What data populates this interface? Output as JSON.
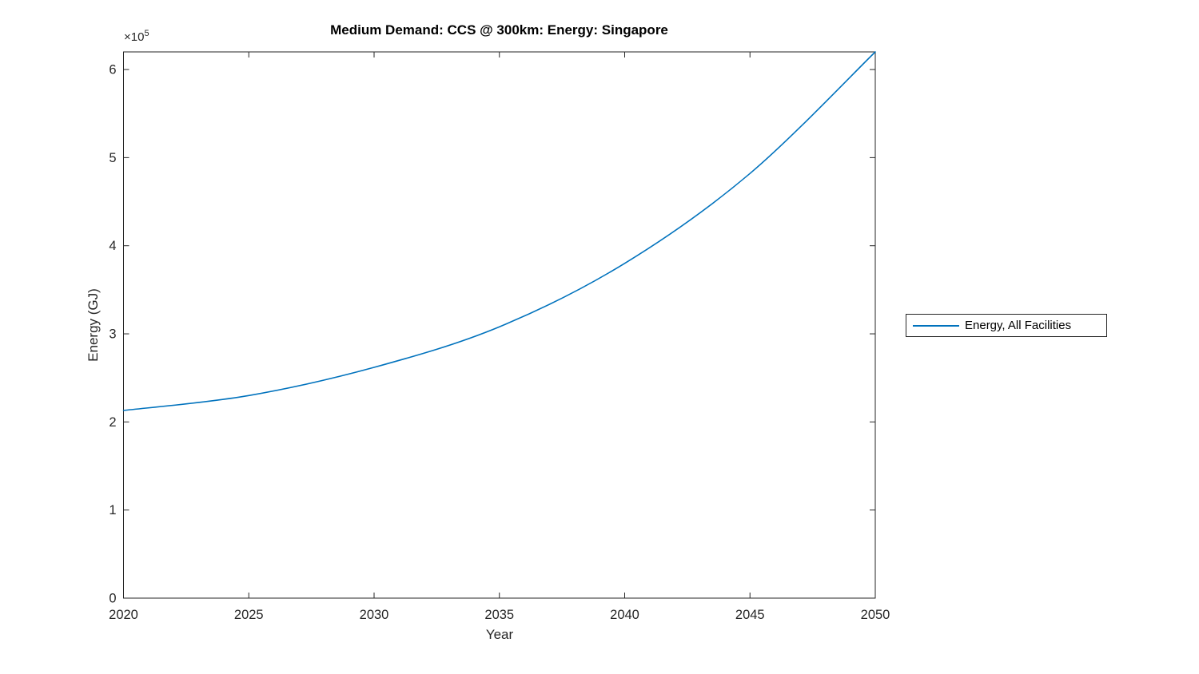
{
  "chart_data": {
    "type": "line",
    "title": "Medium Demand: CCS @ 300km: Energy: Singapore",
    "xlabel": "Year",
    "ylabel": "Energy (GJ)",
    "y_multiplier_base": "×10",
    "y_multiplier_exp": "5",
    "xlim": [
      2020,
      2050
    ],
    "ylim": [
      0,
      620000
    ],
    "xticks": [
      2020,
      2025,
      2030,
      2035,
      2040,
      2045,
      2050
    ],
    "yticks": {
      "values": [
        0,
        100000,
        200000,
        300000,
        400000,
        500000,
        600000
      ],
      "labels": [
        "0",
        "1",
        "2",
        "3",
        "4",
        "5",
        "6"
      ]
    },
    "grid": false,
    "axis_color": "#262626",
    "legend_position": "right-outside",
    "series": [
      {
        "name": "Energy, All Facilities",
        "color": "#0072BD",
        "x": [
          2020,
          2025,
          2030,
          2035,
          2040,
          2045,
          2050
        ],
        "y": [
          213000,
          230000,
          262000,
          308000,
          380000,
          482000,
          620000
        ]
      }
    ]
  }
}
